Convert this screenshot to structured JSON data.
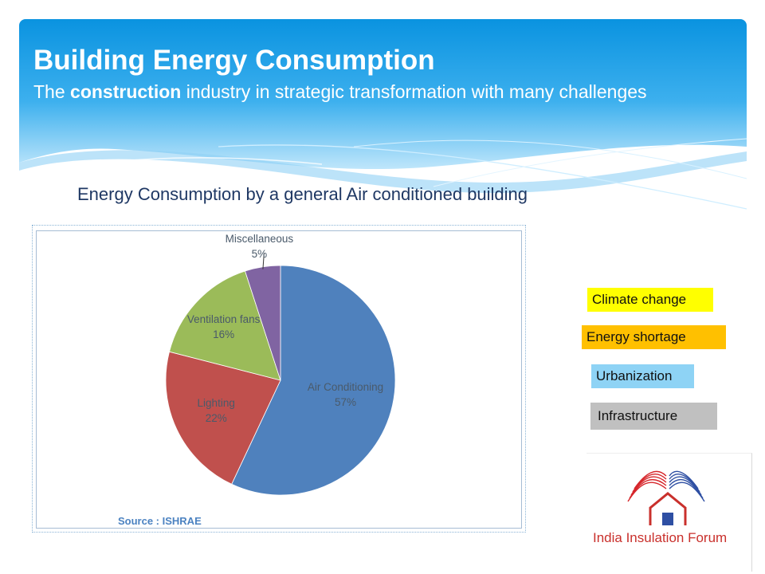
{
  "slide": {
    "title": "Building Energy Consumption",
    "subtitle_prefix": "The ",
    "subtitle_bold": "construction",
    "subtitle_suffix": " industry in strategic transformation with many challenges",
    "chart_heading": "Energy Consumption by a general Air conditioned building",
    "source": "Source : ISHRAE"
  },
  "tags": [
    {
      "label": "Climate change",
      "color": "#ffff00"
    },
    {
      "label": "Energy shortage",
      "color": "#ffc000"
    },
    {
      "label": "Urbanization",
      "color": "#8ed3f5"
    },
    {
      "label": "Infrastructure",
      "color": "#c0c0c0"
    }
  ],
  "logo": {
    "text": "India Insulation Forum"
  },
  "chart_data": {
    "type": "pie",
    "title": "",
    "categories": [
      "Air Conditioning",
      "Lighting",
      "Ventilation fans",
      "Miscellaneous"
    ],
    "values": [
      57,
      22,
      16,
      5
    ],
    "value_labels": [
      "57%",
      "22%",
      "16%",
      "5%"
    ],
    "colors": [
      "#4f81bd",
      "#c0504d",
      "#9bbb59",
      "#8064a2"
    ],
    "legend": "none"
  }
}
